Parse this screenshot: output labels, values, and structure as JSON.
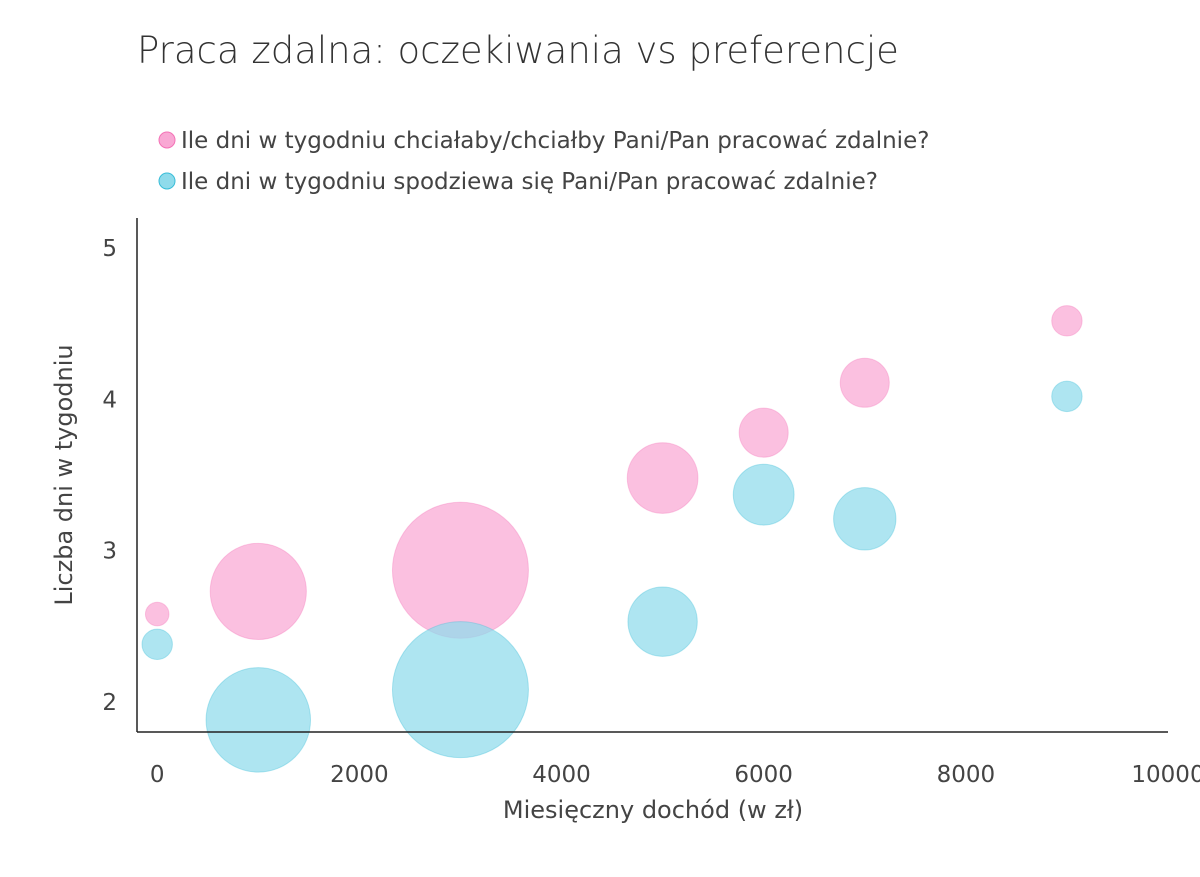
{
  "chart_data": {
    "type": "scatter",
    "subtype": "bubble",
    "title": "Praca zdalna: oczekiwania vs preferencje",
    "xlabel": "Miesięczny dochód (w zł)",
    "ylabel": "Liczba dni w tygodniu",
    "xlim": [
      -200,
      10000
    ],
    "ylim": [
      1.8,
      5.2
    ],
    "xticks": [
      0,
      2000,
      4000,
      6000,
      8000,
      10000
    ],
    "yticks": [
      2,
      3,
      4,
      5
    ],
    "grid": false,
    "legend_position": "top-left",
    "series": [
      {
        "name": "Ile dni w tygodniu chciałaby/chciałby Pani/Pan pracować zdalnie?",
        "color": "#f9a8d4",
        "stroke": "#f472b6",
        "points": [
          {
            "x": 0,
            "y": 2.58,
            "size": 3
          },
          {
            "x": 1000,
            "y": 2.73,
            "size": 50
          },
          {
            "x": 3000,
            "y": 2.87,
            "size": 100
          },
          {
            "x": 5000,
            "y": 3.48,
            "size": 27
          },
          {
            "x": 6000,
            "y": 3.78,
            "size": 13
          },
          {
            "x": 7000,
            "y": 4.11,
            "size": 13
          },
          {
            "x": 9000,
            "y": 4.52,
            "size": 5
          }
        ]
      },
      {
        "name": "Ile dni w tygodniu spodziewa się Pani/Pan pracować zdalnie?",
        "color": "#8fdbeb",
        "stroke": "#38bdd8",
        "points": [
          {
            "x": 0,
            "y": 2.38,
            "size": 5
          },
          {
            "x": 1000,
            "y": 1.88,
            "size": 59
          },
          {
            "x": 3000,
            "y": 2.08,
            "size": 100
          },
          {
            "x": 5000,
            "y": 2.53,
            "size": 26
          },
          {
            "x": 6000,
            "y": 3.37,
            "size": 20
          },
          {
            "x": 7000,
            "y": 3.21,
            "size": 21
          },
          {
            "x": 9000,
            "y": 4.02,
            "size": 5
          }
        ]
      }
    ]
  }
}
